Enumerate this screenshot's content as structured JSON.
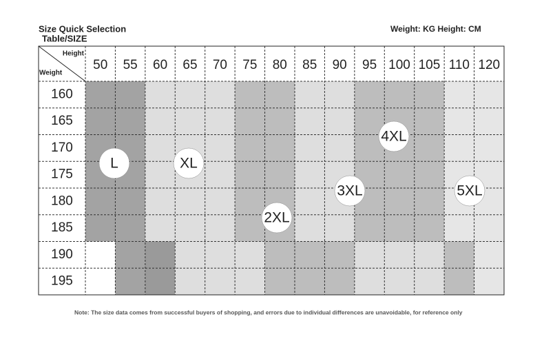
{
  "header": {
    "title": "Size Quick Selection",
    "subtitle": "Table/SIZE",
    "units": "Weight: KG Height: CM"
  },
  "table": {
    "corner_top": "Height",
    "corner_bottom": "Weight",
    "columns": [
      50,
      55,
      60,
      65,
      70,
      75,
      80,
      85,
      90,
      95,
      100,
      105,
      110,
      120
    ],
    "rows": [
      160,
      165,
      170,
      175,
      180,
      185,
      190,
      195
    ]
  },
  "sizes": [
    "L",
    "XL",
    "2XL",
    "3XL",
    "4XL",
    "5XL"
  ],
  "note": "Note: The size data comes from successful buyers of shopping, and errors due to individual differences are unavoidable, for reference only"
}
